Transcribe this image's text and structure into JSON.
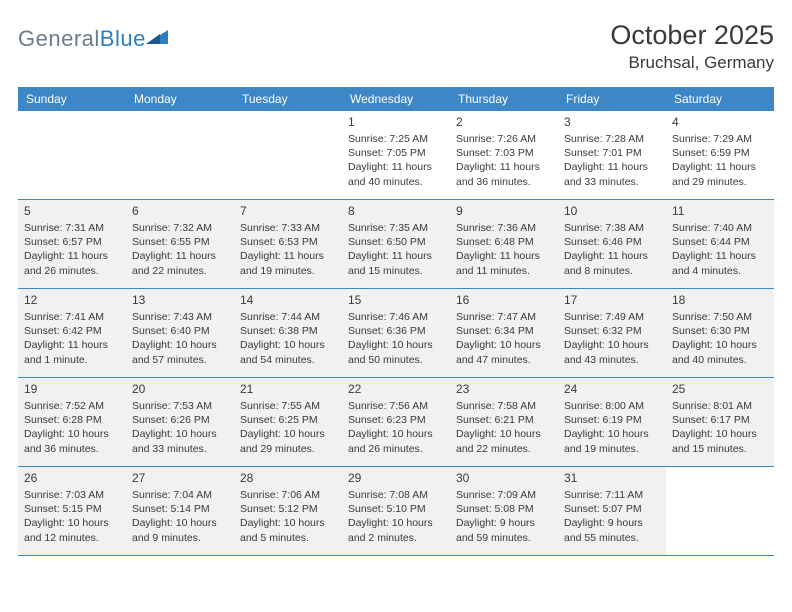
{
  "logo": {
    "text1": "General",
    "text2": "Blue"
  },
  "title": "October 2025",
  "location": "Bruchsal, Germany",
  "weekdays": [
    "Sunday",
    "Monday",
    "Tuesday",
    "Wednesday",
    "Thursday",
    "Friday",
    "Saturday"
  ],
  "colors": {
    "header_bg": "#3d87c7",
    "header_text": "#ffffff",
    "border": "#3d87c7",
    "shaded_bg": "#f1f1f1",
    "text": "#3a3a3a",
    "logo_gray": "#6b7c8e",
    "logo_blue": "#2b7ec1"
  },
  "weeks": [
    [
      {
        "num": "",
        "shaded": false,
        "lines": []
      },
      {
        "num": "",
        "shaded": false,
        "lines": []
      },
      {
        "num": "",
        "shaded": false,
        "lines": []
      },
      {
        "num": "1",
        "shaded": false,
        "lines": [
          "Sunrise: 7:25 AM",
          "Sunset: 7:05 PM",
          "Daylight: 11 hours",
          "and 40 minutes."
        ]
      },
      {
        "num": "2",
        "shaded": false,
        "lines": [
          "Sunrise: 7:26 AM",
          "Sunset: 7:03 PM",
          "Daylight: 11 hours",
          "and 36 minutes."
        ]
      },
      {
        "num": "3",
        "shaded": false,
        "lines": [
          "Sunrise: 7:28 AM",
          "Sunset: 7:01 PM",
          "Daylight: 11 hours",
          "and 33 minutes."
        ]
      },
      {
        "num": "4",
        "shaded": false,
        "lines": [
          "Sunrise: 7:29 AM",
          "Sunset: 6:59 PM",
          "Daylight: 11 hours",
          "and 29 minutes."
        ]
      }
    ],
    [
      {
        "num": "5",
        "shaded": true,
        "lines": [
          "Sunrise: 7:31 AM",
          "Sunset: 6:57 PM",
          "Daylight: 11 hours",
          "and 26 minutes."
        ]
      },
      {
        "num": "6",
        "shaded": true,
        "lines": [
          "Sunrise: 7:32 AM",
          "Sunset: 6:55 PM",
          "Daylight: 11 hours",
          "and 22 minutes."
        ]
      },
      {
        "num": "7",
        "shaded": true,
        "lines": [
          "Sunrise: 7:33 AM",
          "Sunset: 6:53 PM",
          "Daylight: 11 hours",
          "and 19 minutes."
        ]
      },
      {
        "num": "8",
        "shaded": true,
        "lines": [
          "Sunrise: 7:35 AM",
          "Sunset: 6:50 PM",
          "Daylight: 11 hours",
          "and 15 minutes."
        ]
      },
      {
        "num": "9",
        "shaded": true,
        "lines": [
          "Sunrise: 7:36 AM",
          "Sunset: 6:48 PM",
          "Daylight: 11 hours",
          "and 11 minutes."
        ]
      },
      {
        "num": "10",
        "shaded": true,
        "lines": [
          "Sunrise: 7:38 AM",
          "Sunset: 6:46 PM",
          "Daylight: 11 hours",
          "and 8 minutes."
        ]
      },
      {
        "num": "11",
        "shaded": true,
        "lines": [
          "Sunrise: 7:40 AM",
          "Sunset: 6:44 PM",
          "Daylight: 11 hours",
          "and 4 minutes."
        ]
      }
    ],
    [
      {
        "num": "12",
        "shaded": true,
        "lines": [
          "Sunrise: 7:41 AM",
          "Sunset: 6:42 PM",
          "Daylight: 11 hours",
          "and 1 minute."
        ]
      },
      {
        "num": "13",
        "shaded": true,
        "lines": [
          "Sunrise: 7:43 AM",
          "Sunset: 6:40 PM",
          "Daylight: 10 hours",
          "and 57 minutes."
        ]
      },
      {
        "num": "14",
        "shaded": true,
        "lines": [
          "Sunrise: 7:44 AM",
          "Sunset: 6:38 PM",
          "Daylight: 10 hours",
          "and 54 minutes."
        ]
      },
      {
        "num": "15",
        "shaded": true,
        "lines": [
          "Sunrise: 7:46 AM",
          "Sunset: 6:36 PM",
          "Daylight: 10 hours",
          "and 50 minutes."
        ]
      },
      {
        "num": "16",
        "shaded": true,
        "lines": [
          "Sunrise: 7:47 AM",
          "Sunset: 6:34 PM",
          "Daylight: 10 hours",
          "and 47 minutes."
        ]
      },
      {
        "num": "17",
        "shaded": true,
        "lines": [
          "Sunrise: 7:49 AM",
          "Sunset: 6:32 PM",
          "Daylight: 10 hours",
          "and 43 minutes."
        ]
      },
      {
        "num": "18",
        "shaded": true,
        "lines": [
          "Sunrise: 7:50 AM",
          "Sunset: 6:30 PM",
          "Daylight: 10 hours",
          "and 40 minutes."
        ]
      }
    ],
    [
      {
        "num": "19",
        "shaded": true,
        "lines": [
          "Sunrise: 7:52 AM",
          "Sunset: 6:28 PM",
          "Daylight: 10 hours",
          "and 36 minutes."
        ]
      },
      {
        "num": "20",
        "shaded": true,
        "lines": [
          "Sunrise: 7:53 AM",
          "Sunset: 6:26 PM",
          "Daylight: 10 hours",
          "and 33 minutes."
        ]
      },
      {
        "num": "21",
        "shaded": true,
        "lines": [
          "Sunrise: 7:55 AM",
          "Sunset: 6:25 PM",
          "Daylight: 10 hours",
          "and 29 minutes."
        ]
      },
      {
        "num": "22",
        "shaded": true,
        "lines": [
          "Sunrise: 7:56 AM",
          "Sunset: 6:23 PM",
          "Daylight: 10 hours",
          "and 26 minutes."
        ]
      },
      {
        "num": "23",
        "shaded": true,
        "lines": [
          "Sunrise: 7:58 AM",
          "Sunset: 6:21 PM",
          "Daylight: 10 hours",
          "and 22 minutes."
        ]
      },
      {
        "num": "24",
        "shaded": true,
        "lines": [
          "Sunrise: 8:00 AM",
          "Sunset: 6:19 PM",
          "Daylight: 10 hours",
          "and 19 minutes."
        ]
      },
      {
        "num": "25",
        "shaded": true,
        "lines": [
          "Sunrise: 8:01 AM",
          "Sunset: 6:17 PM",
          "Daylight: 10 hours",
          "and 15 minutes."
        ]
      }
    ],
    [
      {
        "num": "26",
        "shaded": true,
        "lines": [
          "Sunrise: 7:03 AM",
          "Sunset: 5:15 PM",
          "Daylight: 10 hours",
          "and 12 minutes."
        ]
      },
      {
        "num": "27",
        "shaded": true,
        "lines": [
          "Sunrise: 7:04 AM",
          "Sunset: 5:14 PM",
          "Daylight: 10 hours",
          "and 9 minutes."
        ]
      },
      {
        "num": "28",
        "shaded": true,
        "lines": [
          "Sunrise: 7:06 AM",
          "Sunset: 5:12 PM",
          "Daylight: 10 hours",
          "and 5 minutes."
        ]
      },
      {
        "num": "29",
        "shaded": true,
        "lines": [
          "Sunrise: 7:08 AM",
          "Sunset: 5:10 PM",
          "Daylight: 10 hours",
          "and 2 minutes."
        ]
      },
      {
        "num": "30",
        "shaded": true,
        "lines": [
          "Sunrise: 7:09 AM",
          "Sunset: 5:08 PM",
          "Daylight: 9 hours",
          "and 59 minutes."
        ]
      },
      {
        "num": "31",
        "shaded": true,
        "lines": [
          "Sunrise: 7:11 AM",
          "Sunset: 5:07 PM",
          "Daylight: 9 hours",
          "and 55 minutes."
        ]
      },
      {
        "num": "",
        "shaded": false,
        "lines": []
      }
    ]
  ]
}
